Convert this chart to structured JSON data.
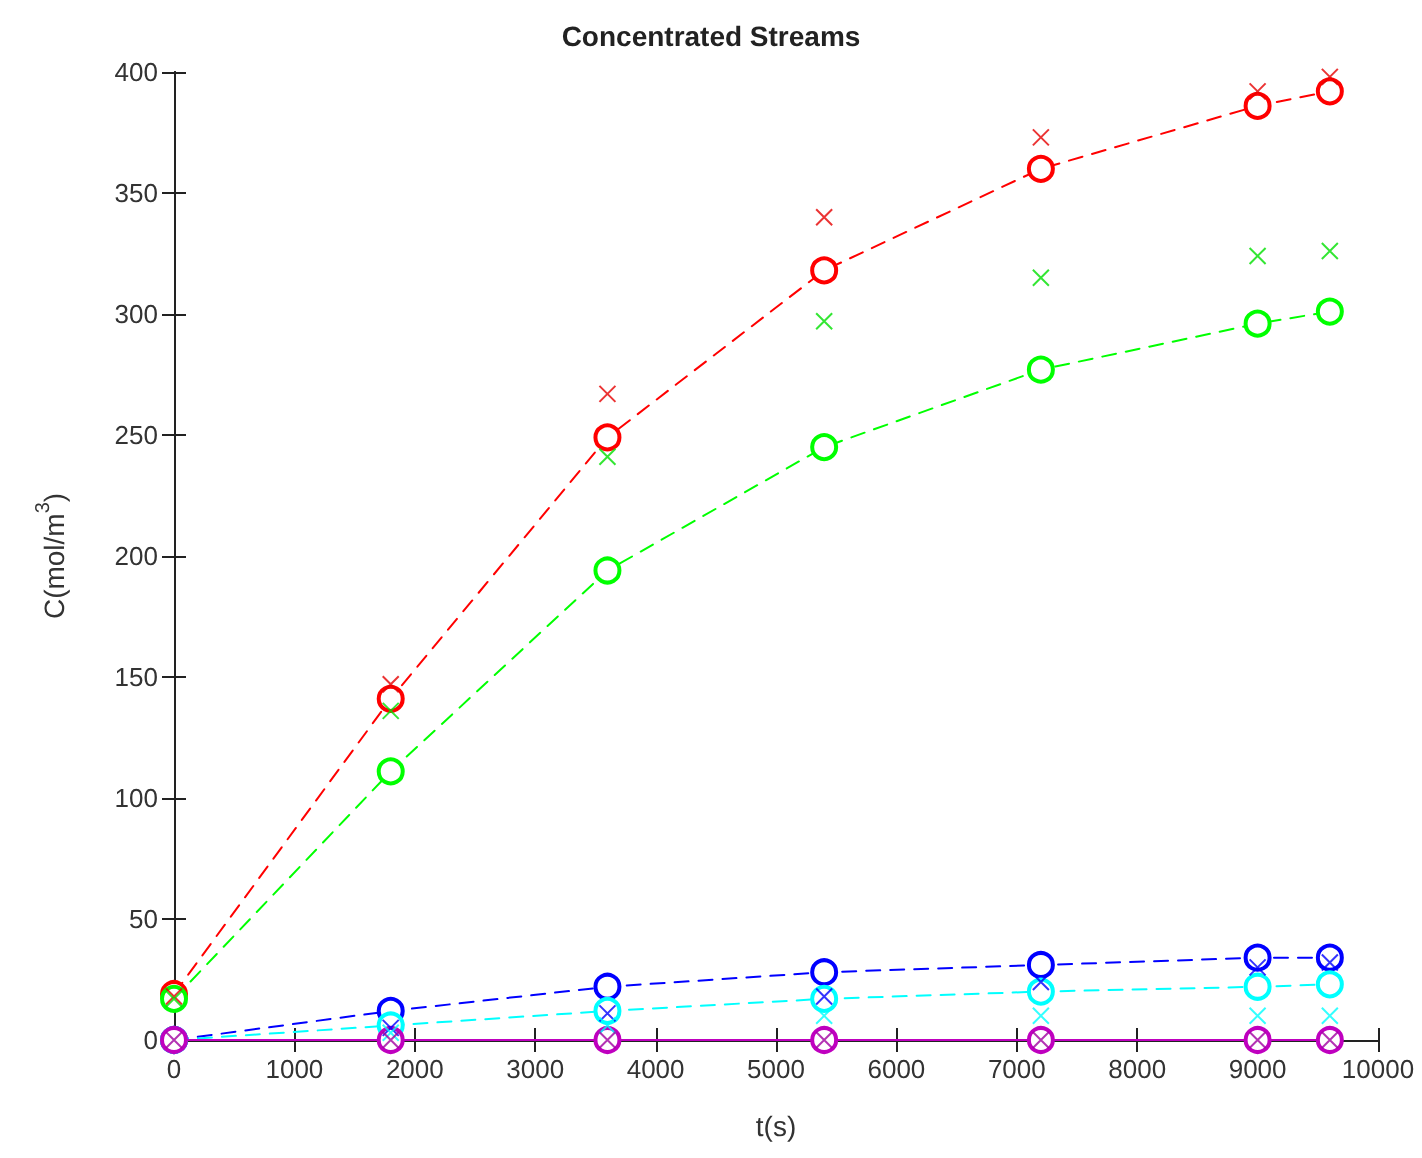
{
  "chart_data": {
    "type": "line",
    "title": "Concentrated Streams",
    "xlabel": "t(s)",
    "ylabel": "C(mol/m$^{3}$)",
    "x": [
      0,
      1800,
      3600,
      5400,
      7200,
      9000,
      9600
    ],
    "series": [
      {
        "color": "#ff0000",
        "marker": "circle",
        "line_style": "dashed",
        "values": [
          19,
          141,
          249,
          318,
          360,
          386,
          392
        ]
      },
      {
        "color": "#00ff00",
        "marker": "circle",
        "line_style": "dashed",
        "values": [
          17,
          111,
          194,
          245,
          277,
          296,
          301
        ]
      },
      {
        "color": "#0000ff",
        "marker": "circle",
        "line_style": "dashed",
        "values": [
          0,
          12,
          22,
          28,
          31,
          34,
          34
        ]
      },
      {
        "color": "#00ffff",
        "marker": "circle",
        "line_style": "dashed",
        "values": [
          0,
          6,
          12,
          17,
          20,
          22,
          23
        ]
      },
      {
        "color": "#bf00bf",
        "marker": "circle",
        "line_style": "solid",
        "values": [
          0,
          0,
          0,
          0,
          0,
          0,
          0
        ]
      },
      {
        "type": "scatter",
        "color": "#e60000",
        "marker": "cross",
        "values": [
          18,
          147,
          267,
          340,
          373,
          392,
          398
        ]
      },
      {
        "type": "scatter",
        "color": "#00e000",
        "marker": "cross",
        "values": [
          17,
          136,
          241,
          297,
          315,
          324,
          326
        ]
      },
      {
        "type": "scatter",
        "color": "#0000ff",
        "marker": "cross",
        "values": [
          null,
          5,
          11,
          18,
          24,
          30,
          32
        ]
      },
      {
        "type": "scatter",
        "color": "#00ffff",
        "marker": "cross",
        "values": [
          null,
          3,
          6,
          10,
          10,
          10,
          10
        ]
      },
      {
        "type": "scatter",
        "color": "#a000a0",
        "marker": "cross",
        "values": [
          0,
          0,
          0,
          0,
          0,
          0,
          0
        ]
      }
    ],
    "xlim": [
      0,
      10000
    ],
    "xticks": [
      0,
      1000,
      2000,
      3000,
      4000,
      5000,
      6000,
      7000,
      8000,
      9000,
      10000
    ],
    "ylim": [
      0,
      400
    ],
    "yticks": [
      0,
      50,
      100,
      150,
      200,
      250,
      300,
      350,
      400
    ],
    "grid": false
  }
}
